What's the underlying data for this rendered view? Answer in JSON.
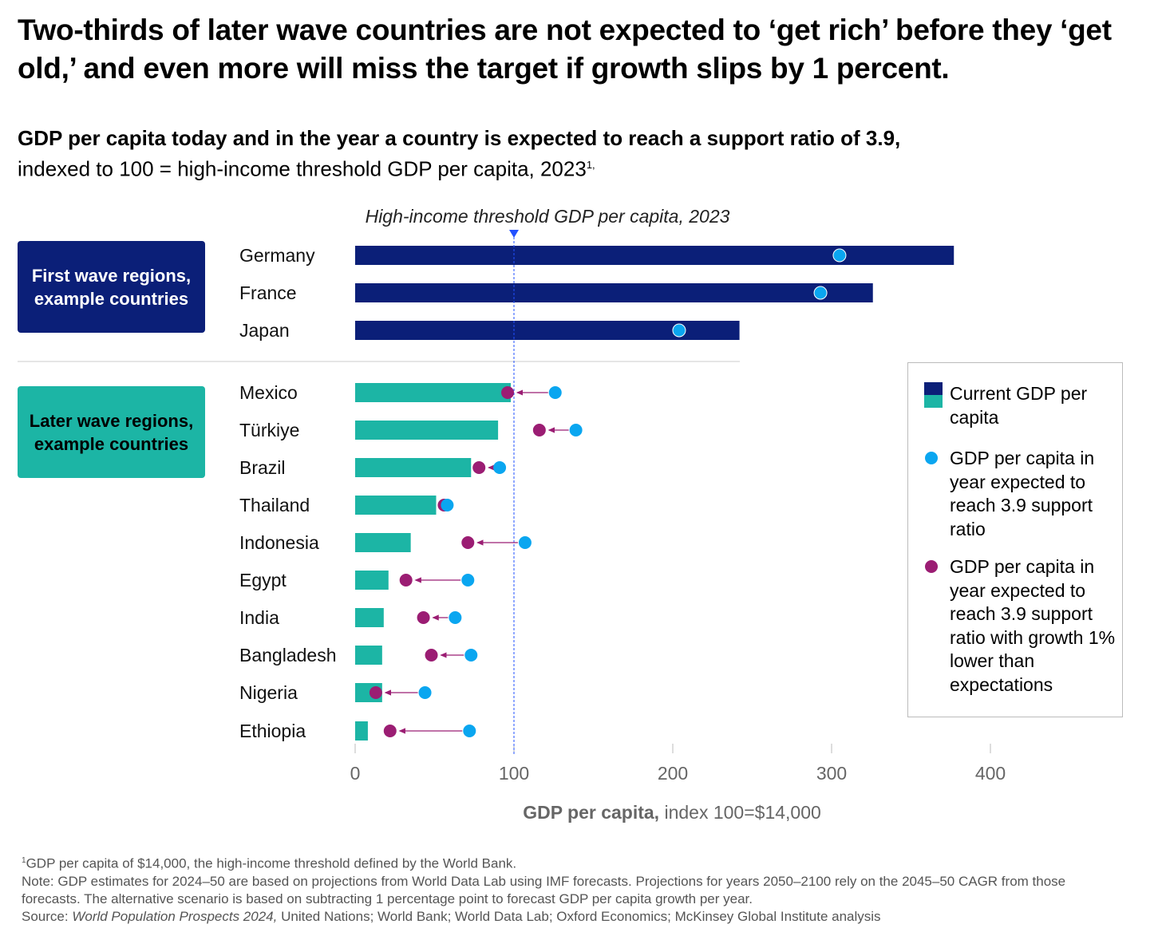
{
  "title": "Two-thirds of later wave countries are not expected to ‘get rich’ before they ‘get old,’ and even more will miss the target if growth slips by 1 percent.",
  "subtitle_bold": "GDP per capita today and in the year a country is expected to reach a support ratio of 3.9,",
  "subtitle_regular": "indexed to 100 = high-income threshold GDP per capita, 2023",
  "subtitle_sup": "1,",
  "groups": {
    "first": "First wave regions, example countries",
    "later": "Later wave regions, example countries"
  },
  "legend": {
    "current": "Current GDP per capita",
    "expected": "GDP per capita in year expected to reach 3.9 support ratio",
    "lower": "GDP per capita in year expected to reach 3.9 support ratio with growth 1% lower than expectations"
  },
  "colors": {
    "first_wave": "#0b1f78",
    "later_wave": "#1cb5a5",
    "expected": "#0aa6f0",
    "lower": "#9b1d73",
    "threshold": "#2251ff"
  },
  "footnotes": {
    "f1": "GDP per capita of $14,000, the high-income threshold defined by the World Bank.",
    "f1_sup": "1",
    "note": "Note: GDP estimates for 2024–50 are based on projections from World Data Lab using IMF forecasts. Projections for years 2050–2100 rely on the 2045–50 CAGR from those forecasts. The alternative scenario is based on subtracting 1 percentage point to forecast GDP per capita growth per year.",
    "source_label": "Source: ",
    "source_italic": "World Population Prospects 2024,",
    "source_rest": " United Nations; World Bank; World Data Lab; Oxford Economics; McKinsey Global Institute analysis"
  },
  "chart_data": {
    "type": "bar",
    "title": "GDP per capita today and in the year a country is expected to reach a support ratio of 3.9",
    "xlabel_bold": "GDP per capita,",
    "xlabel_rest": " index 100=$14,000",
    "xlim": [
      0,
      400
    ],
    "xticks": [
      "0",
      "100",
      "200",
      "300",
      "400"
    ],
    "threshold": {
      "value": 100,
      "label": "High-income threshold GDP per capita, 2023"
    },
    "rows": [
      {
        "country": "Germany",
        "group": "first",
        "current": 377,
        "expected": 305,
        "lower": null
      },
      {
        "country": "France",
        "group": "first",
        "current": 326,
        "expected": 293,
        "lower": null
      },
      {
        "country": "Japan",
        "group": "first",
        "current": 242,
        "expected": 204,
        "lower": null
      },
      {
        "country": "Mexico",
        "group": "later",
        "current": 98,
        "expected": 126,
        "lower": 96
      },
      {
        "country": "Türkiye",
        "group": "later",
        "current": 90,
        "expected": 139,
        "lower": 116
      },
      {
        "country": "Brazil",
        "group": "later",
        "current": 73,
        "expected": 91,
        "lower": 78
      },
      {
        "country": "Thailand",
        "group": "later",
        "current": 51,
        "expected": 58,
        "lower": 56
      },
      {
        "country": "Indonesia",
        "group": "later",
        "current": 35,
        "expected": 107,
        "lower": 71
      },
      {
        "country": "Egypt",
        "group": "later",
        "current": 21,
        "expected": 71,
        "lower": 32
      },
      {
        "country": "India",
        "group": "later",
        "current": 18,
        "expected": 63,
        "lower": 43
      },
      {
        "country": "Bangladesh",
        "group": "later",
        "current": 17,
        "expected": 73,
        "lower": 48
      },
      {
        "country": "Nigeria",
        "group": "later",
        "current": 17,
        "expected": 44,
        "lower": 13
      },
      {
        "country": "Ethiopia",
        "group": "later",
        "current": 8,
        "expected": 72,
        "lower": 22
      }
    ]
  }
}
